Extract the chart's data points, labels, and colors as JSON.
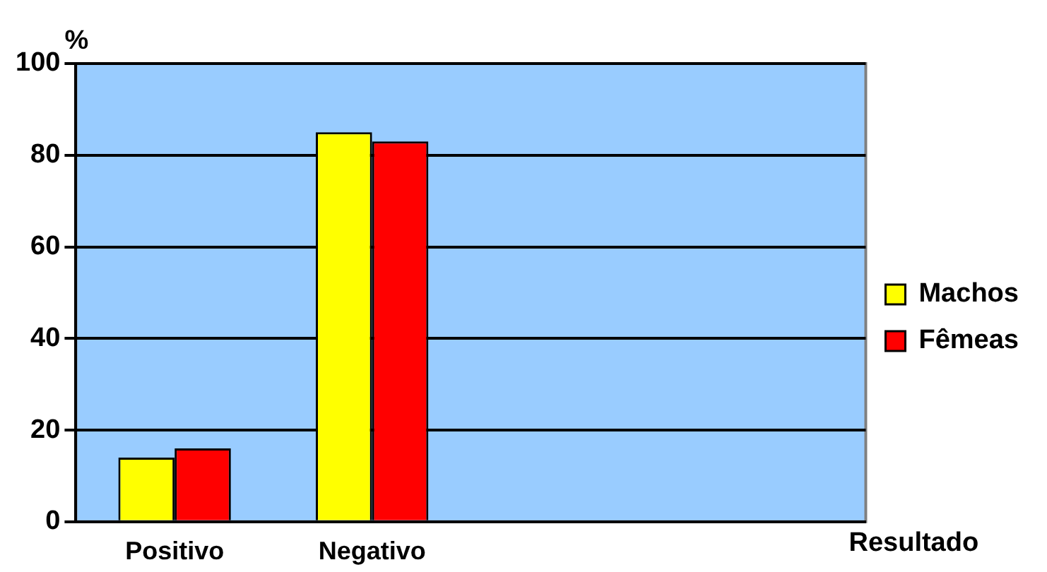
{
  "chart_data": {
    "type": "bar",
    "categories": [
      "Positivo",
      "Negativo",
      null,
      null
    ],
    "xlabel": "Resultado",
    "ylabel": "%",
    "ylim": [
      0,
      100
    ],
    "yticks": [
      0,
      20,
      40,
      60,
      80,
      100
    ],
    "grid": "y",
    "legend": "right",
    "series": [
      {
        "name": "Machos",
        "color": "#ffff00",
        "values": [
          14,
          85,
          null,
          null
        ]
      },
      {
        "name": "Fêmeas",
        "color": "#ff0000",
        "values": [
          16,
          83,
          null,
          null
        ]
      }
    ]
  }
}
